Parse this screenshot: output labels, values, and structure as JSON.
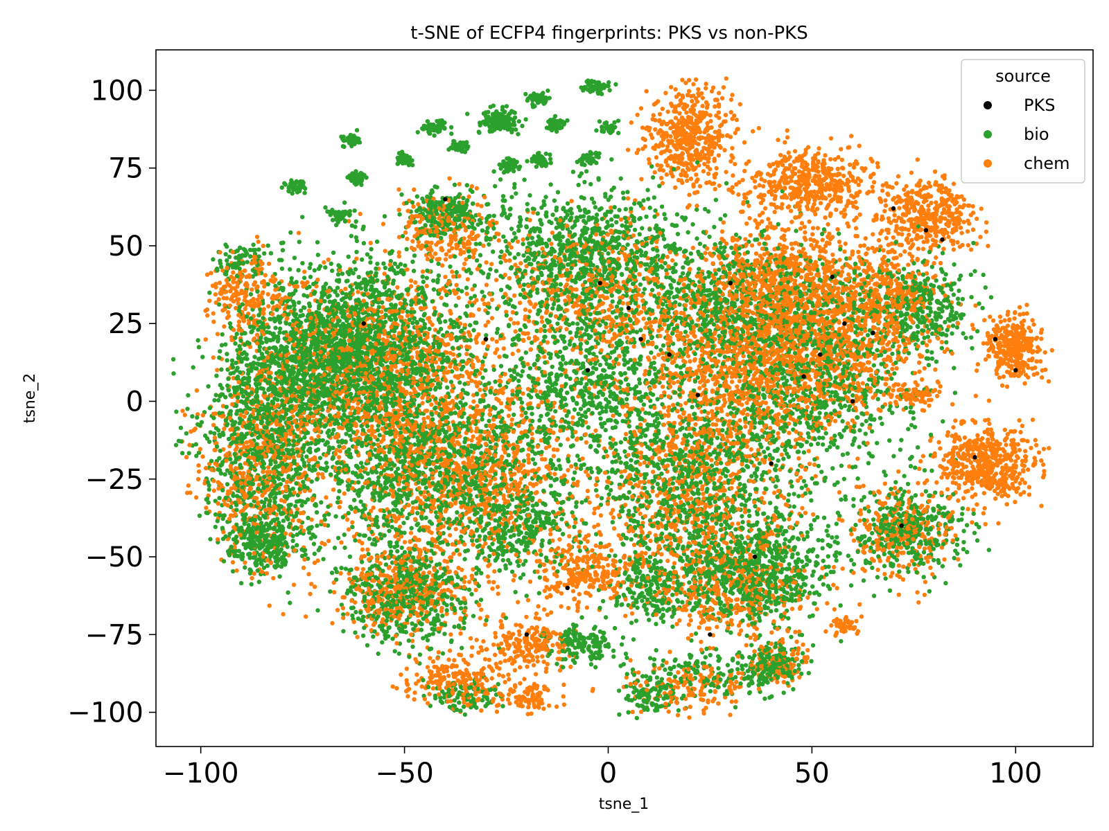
{
  "chart_data": {
    "type": "scatter",
    "title": "t-SNE of ECFP4 fingerprints: PKS vs non-PKS",
    "xlabel": "tsne_1",
    "ylabel": "tsne_2",
    "xlim": [
      -111,
      119
    ],
    "ylim": [
      -111,
      113
    ],
    "xticks": [
      -100,
      -50,
      0,
      50,
      100
    ],
    "xtick_labels": [
      "−100",
      "−50",
      "0",
      "50",
      "100"
    ],
    "yticks": [
      100,
      75,
      50,
      25,
      0,
      -25,
      -50,
      -75,
      -100
    ],
    "ytick_labels": [
      "100",
      "75",
      "50",
      "25",
      "0",
      "−25",
      "−50",
      "−75",
      "−100"
    ],
    "grid": false,
    "legend": {
      "title": "source",
      "placement": "top-right",
      "entries": [
        {
          "label": "PKS",
          "color": "#000000"
        },
        {
          "label": "bio",
          "color": "#2ca02c"
        },
        {
          "label": "chem",
          "color": "#ff7f0e"
        }
      ]
    },
    "series": [
      {
        "name": "bio",
        "color": "#2ca02c",
        "clusters": [
          {
            "x": -60,
            "y": 20,
            "sx": 14,
            "sy": 14,
            "n": 1500
          },
          {
            "x": -85,
            "y": -15,
            "sx": 8,
            "sy": 18,
            "n": 900
          },
          {
            "x": -45,
            "y": -20,
            "sx": 14,
            "sy": 14,
            "n": 1200
          },
          {
            "x": -5,
            "y": 48,
            "sx": 14,
            "sy": 10,
            "n": 900
          },
          {
            "x": -5,
            "y": 5,
            "sx": 10,
            "sy": 15,
            "n": 700
          },
          {
            "x": 20,
            "y": -25,
            "sx": 13,
            "sy": 16,
            "n": 900
          },
          {
            "x": 35,
            "y": -55,
            "sx": 10,
            "sy": 8,
            "n": 700
          },
          {
            "x": 50,
            "y": 10,
            "sx": 13,
            "sy": 18,
            "n": 1000
          },
          {
            "x": -50,
            "y": -62,
            "sx": 8,
            "sy": 8,
            "n": 500
          },
          {
            "x": 77,
            "y": 30,
            "sx": 6,
            "sy": 7,
            "n": 300
          },
          {
            "x": 73,
            "y": -42,
            "sx": 7,
            "sy": 7,
            "n": 350
          },
          {
            "x": -85,
            "y": -45,
            "sx": 5,
            "sy": 5,
            "n": 250
          },
          {
            "x": -22,
            "y": -40,
            "sx": 7,
            "sy": 8,
            "n": 300
          },
          {
            "x": -7,
            "y": -78,
            "sx": 4,
            "sy": 3,
            "n": 150
          },
          {
            "x": 40,
            "y": -85,
            "sx": 4,
            "sy": 3,
            "n": 150
          },
          {
            "x": 25,
            "y": -88,
            "sx": 9,
            "sy": 4,
            "n": 150
          },
          {
            "x": 10,
            "y": -95,
            "sx": 3,
            "sy": 3,
            "n": 100
          },
          {
            "x": -70,
            "y": 10,
            "sx": 10,
            "sy": 10,
            "n": 600
          },
          {
            "x": 30,
            "y": 30,
            "sx": 12,
            "sy": 12,
            "n": 600
          },
          {
            "x": -90,
            "y": 45,
            "sx": 3,
            "sy": 3,
            "n": 80
          },
          {
            "x": -40,
            "y": 60,
            "sx": 5,
            "sy": 4,
            "n": 200
          },
          {
            "x": 10,
            "y": -60,
            "sx": 5,
            "sy": 5,
            "n": 200
          },
          {
            "x": -35,
            "y": -95,
            "sx": 5,
            "sy": 3,
            "n": 100
          },
          {
            "x": -63,
            "y": 84,
            "sx": 1.2,
            "sy": 1,
            "n": 45
          },
          {
            "x": -62,
            "y": 72,
            "sx": 1.2,
            "sy": 1,
            "n": 45
          },
          {
            "x": -77,
            "y": 69,
            "sx": 1.2,
            "sy": 1,
            "n": 45
          },
          {
            "x": -66,
            "y": 60,
            "sx": 1.2,
            "sy": 1,
            "n": 45
          },
          {
            "x": -43,
            "y": 88,
            "sx": 1.5,
            "sy": 1,
            "n": 55
          },
          {
            "x": -50,
            "y": 78,
            "sx": 1.2,
            "sy": 1,
            "n": 45
          },
          {
            "x": -37,
            "y": 82,
            "sx": 1.2,
            "sy": 1,
            "n": 45
          },
          {
            "x": -27,
            "y": 90,
            "sx": 2.5,
            "sy": 2,
            "n": 120
          },
          {
            "x": -24,
            "y": 76,
            "sx": 1.2,
            "sy": 1,
            "n": 45
          },
          {
            "x": -17,
            "y": 97,
            "sx": 1.2,
            "sy": 1,
            "n": 45
          },
          {
            "x": -13,
            "y": 89,
            "sx": 1.2,
            "sy": 1,
            "n": 45
          },
          {
            "x": -17,
            "y": 78,
            "sx": 1.2,
            "sy": 1,
            "n": 45
          },
          {
            "x": -3,
            "y": 101,
            "sx": 1.5,
            "sy": 1,
            "n": 50
          },
          {
            "x": 0,
            "y": 88,
            "sx": 1.2,
            "sy": 1,
            "n": 35
          },
          {
            "x": -5,
            "y": 78,
            "sx": 1.2,
            "sy": 1,
            "n": 45
          }
        ]
      },
      {
        "name": "chem",
        "color": "#ff7f0e",
        "clusters": [
          {
            "x": 52,
            "y": 25,
            "sx": 13,
            "sy": 15,
            "n": 1400
          },
          {
            "x": 30,
            "y": 10,
            "sx": 14,
            "sy": 16,
            "n": 1000
          },
          {
            "x": -55,
            "y": 10,
            "sx": 16,
            "sy": 16,
            "n": 1200
          },
          {
            "x": -35,
            "y": -25,
            "sx": 14,
            "sy": 14,
            "n": 900
          },
          {
            "x": -85,
            "y": -20,
            "sx": 8,
            "sy": 18,
            "n": 600
          },
          {
            "x": 20,
            "y": 85,
            "sx": 5,
            "sy": 8,
            "n": 500
          },
          {
            "x": 50,
            "y": 70,
            "sx": 8,
            "sy": 6,
            "n": 450
          },
          {
            "x": 78,
            "y": 60,
            "sx": 6,
            "sy": 6,
            "n": 400
          },
          {
            "x": 93,
            "y": -20,
            "sx": 6,
            "sy": 6,
            "n": 500
          },
          {
            "x": 100,
            "y": 17,
            "sx": 3.5,
            "sy": 5,
            "n": 300
          },
          {
            "x": 72,
            "y": -42,
            "sx": 6,
            "sy": 7,
            "n": 250
          },
          {
            "x": 58,
            "y": -72,
            "sx": 2,
            "sy": 1.5,
            "n": 50
          },
          {
            "x": 20,
            "y": -30,
            "sx": 12,
            "sy": 14,
            "n": 600
          },
          {
            "x": -5,
            "y": 35,
            "sx": 12,
            "sy": 12,
            "n": 500
          },
          {
            "x": 30,
            "y": -60,
            "sx": 10,
            "sy": 8,
            "n": 400
          },
          {
            "x": -50,
            "y": -60,
            "sx": 8,
            "sy": 8,
            "n": 400
          },
          {
            "x": 75,
            "y": 2,
            "sx": 3,
            "sy": 2,
            "n": 80
          },
          {
            "x": -88,
            "y": 35,
            "sx": 5,
            "sy": 6,
            "n": 200
          },
          {
            "x": -5,
            "y": -55,
            "sx": 6,
            "sy": 5,
            "n": 250
          },
          {
            "x": -20,
            "y": -78,
            "sx": 5,
            "sy": 4,
            "n": 200
          },
          {
            "x": -38,
            "y": -90,
            "sx": 6,
            "sy": 4,
            "n": 200
          },
          {
            "x": -20,
            "y": -95,
            "sx": 4,
            "sy": 3,
            "n": 100
          },
          {
            "x": 20,
            "y": -92,
            "sx": 7,
            "sy": 4,
            "n": 150
          },
          {
            "x": 42,
            "y": -84,
            "sx": 4,
            "sy": 3,
            "n": 100
          },
          {
            "x": -40,
            "y": 55,
            "sx": 6,
            "sy": 6,
            "n": 200
          },
          {
            "x": 40,
            "y": 40,
            "sx": 8,
            "sy": 8,
            "n": 300
          },
          {
            "x": 70,
            "y": 35,
            "sx": 5,
            "sy": 5,
            "n": 150
          }
        ]
      },
      {
        "name": "PKS",
        "color": "#000000",
        "points": [
          [
            8,
            20
          ],
          [
            22,
            2
          ],
          [
            30,
            38
          ],
          [
            48,
            8
          ],
          [
            52,
            15
          ],
          [
            60,
            0
          ],
          [
            65,
            22
          ],
          [
            78,
            55
          ],
          [
            82,
            52
          ],
          [
            90,
            -18
          ],
          [
            100,
            10
          ],
          [
            72,
            -40
          ],
          [
            36,
            -50
          ],
          [
            -2,
            38
          ],
          [
            -5,
            10
          ],
          [
            -40,
            65
          ],
          [
            -30,
            20
          ],
          [
            -10,
            -60
          ],
          [
            25,
            -75
          ],
          [
            -20,
            -75
          ],
          [
            55,
            40
          ],
          [
            15,
            15
          ],
          [
            -60,
            25
          ],
          [
            40,
            -20
          ],
          [
            70,
            62
          ],
          [
            95,
            20
          ],
          [
            5,
            30
          ],
          [
            58,
            25
          ]
        ]
      }
    ]
  }
}
